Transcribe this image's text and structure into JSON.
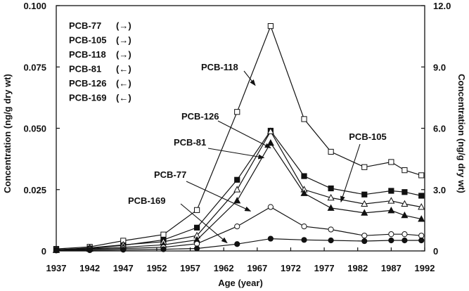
{
  "chart_data": {
    "type": "line",
    "xlabel": "Age (year)",
    "ylabel_left": "Concentration (ng/g dry wt)",
    "ylabel_right": "Concentration (ng/g dry wt)",
    "x_ticks": [
      "1937",
      "1942",
      "1947",
      "1952",
      "1957",
      "1962",
      "1967",
      "1972",
      "1977",
      "1982",
      "1987",
      "1992"
    ],
    "xlim": [
      1937,
      1992
    ],
    "ylim_left": [
      0,
      0.1
    ],
    "ylim_right": [
      0,
      12
    ],
    "left_ticks": [
      "0",
      "0.025",
      "0.050",
      "0.075",
      "0.100"
    ],
    "right_ticks": [
      "0",
      "3.0",
      "6.0",
      "9.0",
      "12.0"
    ],
    "legend": [
      {
        "name": "PCB-77",
        "arrow": "(→)"
      },
      {
        "name": "PCB-105",
        "arrow": "(→)"
      },
      {
        "name": "PCB-118",
        "arrow": "(→)"
      },
      {
        "name": "PCB-81",
        "arrow": "(←)"
      },
      {
        "name": "PCB-126",
        "arrow": "(←)"
      },
      {
        "name": "PCB-169",
        "arrow": "(←)"
      }
    ],
    "series": [
      {
        "name": "PCB-118",
        "axis": "right",
        "marker": "open-square",
        "x": [
          1937,
          1942,
          1947,
          1953,
          1958,
          1964,
          1969,
          1974,
          1978,
          1983,
          1987,
          1989,
          1991.5
        ],
        "values": [
          0.1,
          0.2,
          0.5,
          0.8,
          2.0,
          6.8,
          11.0,
          6.45,
          4.85,
          4.1,
          4.35,
          3.95,
          3.7
        ]
      },
      {
        "name": "PCB-126",
        "axis": "left",
        "marker": "filled-square",
        "x": [
          1937,
          1942,
          1947,
          1953,
          1958,
          1964,
          1969,
          1974,
          1978,
          1983,
          1987,
          1989,
          1991.5
        ],
        "values": [
          0.0005,
          0.001,
          0.0023,
          0.0045,
          0.0095,
          0.029,
          0.049,
          0.0305,
          0.0255,
          0.023,
          0.0245,
          0.024,
          0.0225
        ]
      },
      {
        "name": "PCB-105",
        "axis": "right",
        "marker": "open-triangle",
        "x": [
          1937,
          1942,
          1947,
          1953,
          1958,
          1964,
          1969,
          1974,
          1978,
          1983,
          1987,
          1989,
          1991.5
        ],
        "values": [
          0.05,
          0.15,
          0.3,
          0.45,
          0.75,
          3.0,
          5.85,
          3.0,
          2.6,
          2.3,
          2.45,
          2.3,
          2.15
        ]
      },
      {
        "name": "PCB-81",
        "axis": "left",
        "marker": "filled-triangle",
        "x": [
          1937,
          1942,
          1947,
          1953,
          1958,
          1964,
          1969,
          1974,
          1978,
          1983,
          1987,
          1989,
          1991.5
        ],
        "values": [
          0.0003,
          0.0008,
          0.0015,
          0.0025,
          0.0045,
          0.0205,
          0.044,
          0.0235,
          0.0175,
          0.0155,
          0.0165,
          0.0145,
          0.013
        ]
      },
      {
        "name": "PCB-77",
        "axis": "right",
        "marker": "open-circle",
        "x": [
          1937,
          1942,
          1947,
          1953,
          1958,
          1964,
          1969,
          1974,
          1978,
          1983,
          1987,
          1989,
          1991.5
        ],
        "values": [
          0.03,
          0.08,
          0.12,
          0.18,
          0.35,
          1.2,
          2.15,
          1.2,
          1.05,
          0.75,
          0.82,
          0.82,
          0.75
        ]
      },
      {
        "name": "PCB-169",
        "axis": "left",
        "marker": "filled-circle",
        "x": [
          1937,
          1942,
          1947,
          1953,
          1958,
          1964,
          1969,
          1974,
          1978,
          1983,
          1987,
          1989,
          1991.5
        ],
        "values": [
          0.0002,
          0.0003,
          0.0005,
          0.0007,
          0.001,
          0.0028,
          0.005,
          0.0045,
          0.0043,
          0.004,
          0.0043,
          0.0043,
          0.0043
        ]
      }
    ],
    "annotations": [
      {
        "text": "PCB-118",
        "target_series": "PCB-118",
        "target_x": 1966.7,
        "target_y": 8.1
      },
      {
        "text": "PCB-126",
        "target_series": "PCB-126",
        "target_x": 1969.0,
        "target_y": 0.042
      },
      {
        "text": "PCB-81",
        "target_series": "PCB-81",
        "target_x": 1968.0,
        "target_y": 0.038
      },
      {
        "text": "PCB-77",
        "target_series": "PCB-77",
        "target_x": 1966.0,
        "target_y": 1.95
      },
      {
        "text": "PCB-169",
        "target_series": "PCB-169",
        "target_x": 1962.5,
        "target_y": 0.0033
      },
      {
        "text": "PCB-105",
        "target_series": "PCB-105",
        "target_x": 1979.5,
        "target_y": 2.4
      }
    ]
  }
}
